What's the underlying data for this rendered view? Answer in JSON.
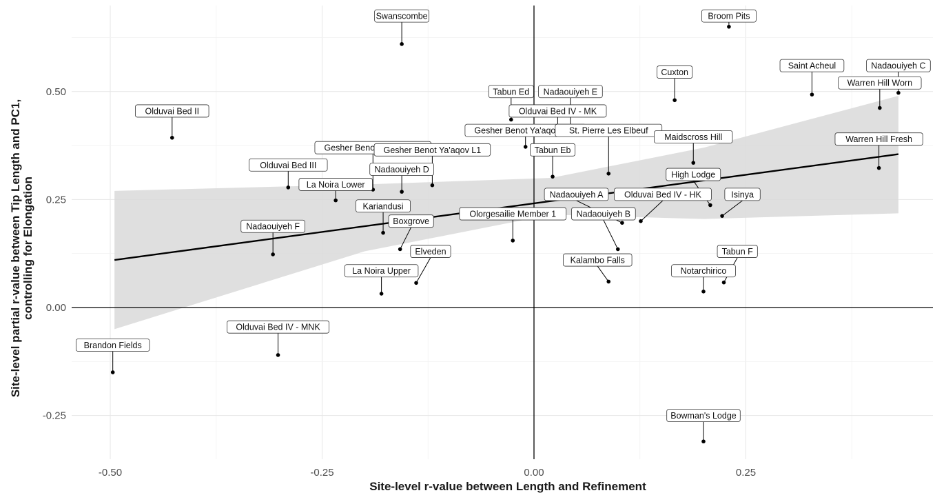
{
  "chart_data": {
    "type": "scatter",
    "title": "",
    "xlabel": "Site-level r-value between Length and Refinement",
    "ylabel_lines": [
      "Site-level partial r-value between Tip Length and PC1,",
      "controlling for Elongation"
    ],
    "xlim": [
      -0.55,
      0.48
    ],
    "ylim": [
      -0.35,
      0.7
    ],
    "x_ticks": [
      -0.5,
      -0.25,
      0.0,
      0.25
    ],
    "x_tick_labels": [
      "-0.50",
      "-0.25",
      "0.00",
      "0.25"
    ],
    "y_ticks": [
      -0.25,
      0.0,
      0.25,
      0.5
    ],
    "y_tick_labels": [
      "-0.25",
      "0.00",
      "0.25",
      "0.50"
    ],
    "grid": true,
    "reference_lines": {
      "x": 0,
      "y": 0
    },
    "regression": {
      "x_range": [
        -0.495,
        0.43
      ],
      "y_at_start": 0.11,
      "y_at_end": 0.355,
      "ci_lower": [
        -0.05,
        0.218
      ],
      "ci_upper": [
        0.27,
        0.49
      ],
      "ci_color": "#d9d9d9",
      "line_color": "#000000"
    },
    "points": [
      {
        "label": "Broom Pits",
        "x": 0.23,
        "y": 0.65,
        "lx": 0.23,
        "ly": 0.675
      },
      {
        "label": "Swanscombe",
        "x": -0.156,
        "y": 0.61,
        "lx": -0.156,
        "ly": 0.675
      },
      {
        "label": "Cuxton",
        "x": 0.166,
        "y": 0.48,
        "lx": 0.166,
        "ly": 0.545
      },
      {
        "label": "Saint Acheul",
        "x": 0.328,
        "y": 0.493,
        "lx": 0.328,
        "ly": 0.56
      },
      {
        "label": "Nadaouiyeh C",
        "x": 0.43,
        "y": 0.497,
        "lx": 0.43,
        "ly": 0.56
      },
      {
        "label": "Warren Hill Worn",
        "x": 0.408,
        "y": 0.462,
        "lx": 0.408,
        "ly": 0.52
      },
      {
        "label": "Tabun Ed",
        "x": -0.027,
        "y": 0.435,
        "lx": -0.027,
        "ly": 0.5
      },
      {
        "label": "Nadaouiyeh E",
        "x": 0.043,
        "y": 0.41,
        "lx": 0.043,
        "ly": 0.5
      },
      {
        "label": "Olduvai Bed IV - MK",
        "x": 0.028,
        "y": 0.4,
        "lx": 0.028,
        "ly": 0.455
      },
      {
        "label": "Olduvai Bed II",
        "x": -0.427,
        "y": 0.393,
        "lx": -0.427,
        "ly": 0.455
      },
      {
        "label": "Gesher Benot Ya'aqov L4b",
        "x": -0.01,
        "y": 0.372,
        "lx": -0.01,
        "ly": 0.41
      },
      {
        "label": "St. Pierre Les Elbeuf",
        "x": 0.088,
        "y": 0.31,
        "lx": 0.088,
        "ly": 0.41
      },
      {
        "label": "Maidscross Hill",
        "x": 0.188,
        "y": 0.335,
        "lx": 0.188,
        "ly": 0.395
      },
      {
        "label": "Warren Hill Fresh",
        "x": 0.407,
        "y": 0.323,
        "lx": 0.407,
        "ly": 0.39
      },
      {
        "label": "Gesher Benot Ya'aqov L4",
        "x": -0.19,
        "y": 0.273,
        "lx": -0.19,
        "ly": 0.37
      },
      {
        "label": "Gesher Benot Ya'aqov L1",
        "x": -0.12,
        "y": 0.283,
        "lx": -0.12,
        "ly": 0.365
      },
      {
        "label": "Tabun Eb",
        "x": 0.022,
        "y": 0.303,
        "lx": 0.022,
        "ly": 0.365
      },
      {
        "label": "Olduvai Bed III",
        "x": -0.29,
        "y": 0.278,
        "lx": -0.29,
        "ly": 0.33
      },
      {
        "label": "Nadaouiyeh D",
        "x": -0.156,
        "y": 0.268,
        "lx": -0.156,
        "ly": 0.32
      },
      {
        "label": "High Lodge",
        "x": 0.208,
        "y": 0.237,
        "lx": 0.188,
        "ly": 0.308
      },
      {
        "label": "La Noira Lower",
        "x": -0.234,
        "y": 0.248,
        "lx": -0.234,
        "ly": 0.285
      },
      {
        "label": "Nadaouiyeh A",
        "x": 0.104,
        "y": 0.196,
        "lx": 0.05,
        "ly": 0.262
      },
      {
        "label": "Olduvai Bed IV - HK",
        "x": 0.126,
        "y": 0.2,
        "lx": 0.152,
        "ly": 0.262
      },
      {
        "label": "Isinya",
        "x": 0.222,
        "y": 0.212,
        "lx": 0.246,
        "ly": 0.262
      },
      {
        "label": "Kariandusi",
        "x": -0.178,
        "y": 0.173,
        "lx": -0.178,
        "ly": 0.235
      },
      {
        "label": "Olorgesailie Member 1",
        "x": -0.025,
        "y": 0.155,
        "lx": -0.025,
        "ly": 0.217
      },
      {
        "label": "Nadaouiyeh B",
        "x": 0.099,
        "y": 0.135,
        "lx": 0.082,
        "ly": 0.217
      },
      {
        "label": "Boxgrove",
        "x": -0.158,
        "y": 0.135,
        "lx": -0.145,
        "ly": 0.2
      },
      {
        "label": "Nadaouiyeh F",
        "x": -0.308,
        "y": 0.123,
        "lx": -0.308,
        "ly": 0.188
      },
      {
        "label": "Elveden",
        "x": -0.139,
        "y": 0.057,
        "lx": -0.122,
        "ly": 0.13
      },
      {
        "label": "Tabun F",
        "x": 0.224,
        "y": 0.058,
        "lx": 0.24,
        "ly": 0.13
      },
      {
        "label": "Kalambo Falls",
        "x": 0.088,
        "y": 0.06,
        "lx": 0.075,
        "ly": 0.11
      },
      {
        "label": "La Noira Upper",
        "x": -0.18,
        "y": 0.032,
        "lx": -0.18,
        "ly": 0.085
      },
      {
        "label": "Notarchirico",
        "x": 0.2,
        "y": 0.037,
        "lx": 0.2,
        "ly": 0.085
      },
      {
        "label": "Olduvai Bed IV - MNK",
        "x": -0.302,
        "y": -0.11,
        "lx": -0.302,
        "ly": -0.045
      },
      {
        "label": "Brandon Fields",
        "x": -0.497,
        "y": -0.15,
        "lx": -0.497,
        "ly": -0.087
      },
      {
        "label": "Bowman's Lodge",
        "x": 0.2,
        "y": -0.31,
        "lx": 0.2,
        "ly": -0.25
      }
    ]
  }
}
